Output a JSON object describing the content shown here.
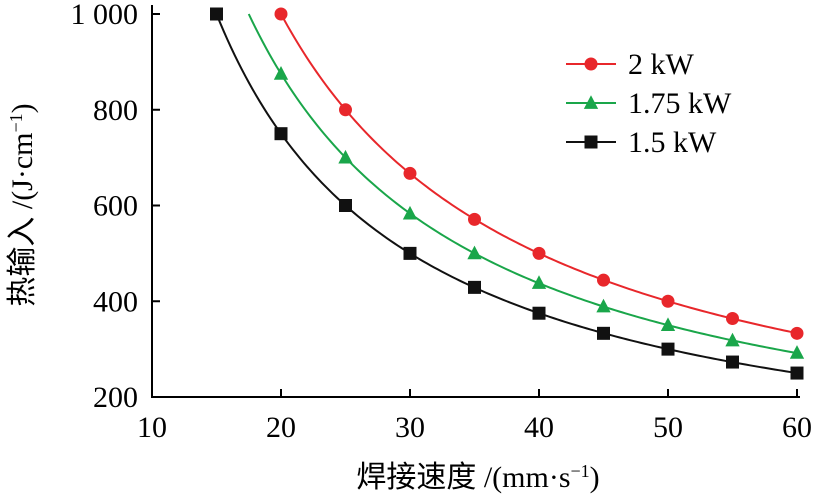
{
  "chart_data": {
    "type": "line",
    "title": "",
    "xlabel": {
      "main": "焊接速度 /(mm·s",
      "sup": "−1",
      "close": ")"
    },
    "ylabel": {
      "main": "热输入 /(J·cm",
      "sup": "−1",
      "close": ")"
    },
    "xlim": [
      10,
      60
    ],
    "ylim": [
      200,
      1000
    ],
    "xticks": [
      10,
      20,
      30,
      40,
      50,
      60
    ],
    "xtick_labels": [
      "10",
      "20",
      "30",
      "40",
      "50",
      "60"
    ],
    "yticks": [
      200,
      400,
      600,
      800,
      1000
    ],
    "ytick_labels": [
      "200",
      "400",
      "600",
      "800",
      "1 000"
    ],
    "grid": false,
    "legend_position": "top-right",
    "series": [
      {
        "name": "2 kW",
        "color": "#e8272b",
        "marker": "circle",
        "x": [
          20,
          25,
          30,
          35,
          40,
          45,
          50,
          55,
          60
        ],
        "y": [
          1000,
          800,
          667,
          571,
          500,
          444,
          400,
          364,
          333
        ]
      },
      {
        "name": "1.75 kW",
        "color": "#1aa64a",
        "marker": "triangle",
        "x": [
          20,
          25,
          30,
          35,
          40,
          45,
          50,
          55,
          60
        ],
        "y": [
          875,
          700,
          583,
          500,
          438,
          389,
          350,
          318,
          292
        ]
      },
      {
        "name": "1.5 kW",
        "color": "#111111",
        "marker": "square",
        "x": [
          15,
          20,
          25,
          30,
          35,
          40,
          45,
          50,
          55,
          60
        ],
        "y": [
          1000,
          750,
          600,
          500,
          429,
          375,
          333,
          300,
          273,
          250
        ]
      }
    ]
  }
}
